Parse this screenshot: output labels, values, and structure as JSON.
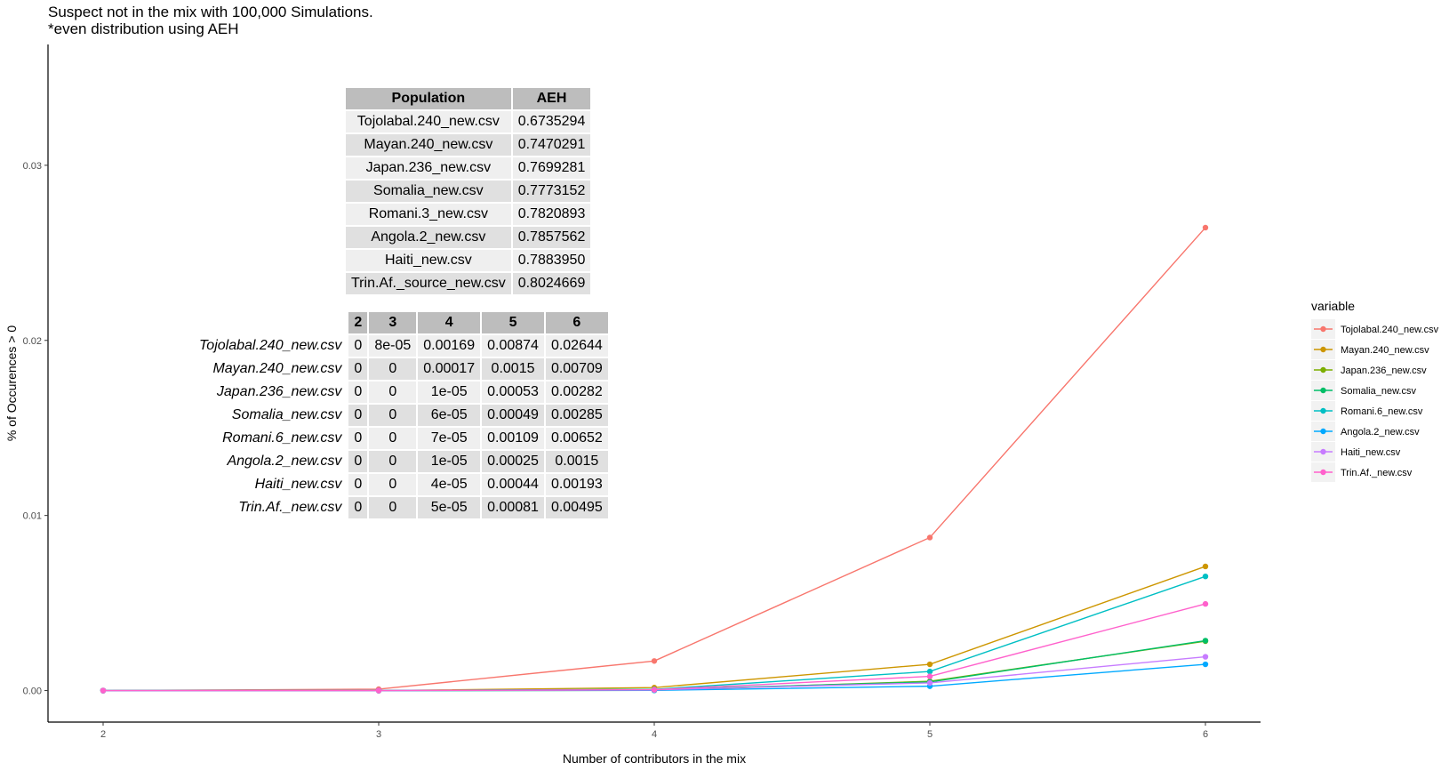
{
  "title_lines": [
    "Suspect not in the mix with 100,000 Simulations.",
    "*even distribution using AEH"
  ],
  "chart_data": {
    "type": "line",
    "x": [
      2,
      3,
      4,
      5,
      6
    ],
    "xlabel": "Number of contributors in the mix",
    "ylabel": "% of Occurences > 0",
    "xlim": [
      1.8,
      6.2
    ],
    "ylim": [
      -0.0018,
      0.0369
    ],
    "xticks": [
      "2",
      "3",
      "4",
      "5",
      "6"
    ],
    "yticks": [
      "0.00",
      "0.01",
      "0.02",
      "0.03"
    ],
    "ytick_values": [
      0,
      0.01,
      0.02,
      0.03
    ],
    "grid": false,
    "legend_title": "variable",
    "legend_position": "right",
    "series": [
      {
        "name": "Tojolabal.240_new.csv",
        "color": "#F8766D",
        "values": [
          0,
          8e-05,
          0.00169,
          0.00874,
          0.02644
        ]
      },
      {
        "name": "Mayan.240_new.csv",
        "color": "#CD9600",
        "values": [
          0,
          0,
          0.00017,
          0.0015,
          0.00709
        ]
      },
      {
        "name": "Japan.236_new.csv",
        "color": "#7CAE00",
        "values": [
          0,
          0,
          1e-05,
          0.00053,
          0.00282
        ]
      },
      {
        "name": "Somalia_new.csv",
        "color": "#00BE67",
        "values": [
          0,
          0,
          6e-05,
          0.00049,
          0.00285
        ]
      },
      {
        "name": "Romani.6_new.csv",
        "color": "#00BFC4",
        "values": [
          0,
          0,
          7e-05,
          0.00109,
          0.00652
        ]
      },
      {
        "name": "Angola.2_new.csv",
        "color": "#00A9FF",
        "values": [
          0,
          0,
          1e-05,
          0.00025,
          0.0015
        ]
      },
      {
        "name": "Haiti_new.csv",
        "color": "#C77CFF",
        "values": [
          0,
          0,
          4e-05,
          0.00044,
          0.00193
        ]
      },
      {
        "name": "Trin.Af._new.csv",
        "color": "#FF61CC",
        "values": [
          0,
          0,
          5e-05,
          0.00081,
          0.00495
        ]
      }
    ]
  },
  "aeh_table": {
    "headers": [
      "Population",
      "AEH"
    ],
    "rows": [
      [
        "Tojolabal.240_new.csv",
        "0.6735294"
      ],
      [
        "Mayan.240_new.csv",
        "0.7470291"
      ],
      [
        "Japan.236_new.csv",
        "0.7699281"
      ],
      [
        "Somalia_new.csv",
        "0.7773152"
      ],
      [
        "Romani.3_new.csv",
        "0.7820893"
      ],
      [
        "Angola.2_new.csv",
        "0.7857562"
      ],
      [
        "Haiti_new.csv",
        "0.7883950"
      ],
      [
        "Trin.Af._source_new.csv",
        "0.8024669"
      ]
    ]
  },
  "counts_table": {
    "headers": [
      "2",
      "3",
      "4",
      "5",
      "6"
    ],
    "rows": [
      {
        "label": "Tojolabal.240_new.csv",
        "values": [
          "0",
          "8e-05",
          "0.00169",
          "0.00874",
          "0.02644"
        ]
      },
      {
        "label": "Mayan.240_new.csv",
        "values": [
          "0",
          "0",
          "0.00017",
          "0.0015",
          "0.00709"
        ]
      },
      {
        "label": "Japan.236_new.csv",
        "values": [
          "0",
          "0",
          "1e-05",
          "0.00053",
          "0.00282"
        ]
      },
      {
        "label": "Somalia_new.csv",
        "values": [
          "0",
          "0",
          "6e-05",
          "0.00049",
          "0.00285"
        ]
      },
      {
        "label": "Romani.6_new.csv",
        "values": [
          "0",
          "0",
          "7e-05",
          "0.00109",
          "0.00652"
        ]
      },
      {
        "label": "Angola.2_new.csv",
        "values": [
          "0",
          "0",
          "1e-05",
          "0.00025",
          "0.0015"
        ]
      },
      {
        "label": "Haiti_new.csv",
        "values": [
          "0",
          "0",
          "4e-05",
          "0.00044",
          "0.00193"
        ]
      },
      {
        "label": "Trin.Af._new.csv",
        "values": [
          "0",
          "0",
          "5e-05",
          "0.00081",
          "0.00495"
        ]
      }
    ]
  }
}
